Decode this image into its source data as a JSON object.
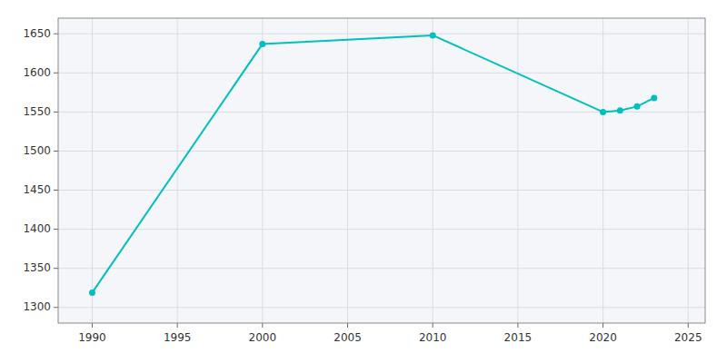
{
  "chart_data": {
    "type": "line",
    "x": [
      1990,
      2000,
      2010,
      2020,
      2021,
      2022,
      2023
    ],
    "values": [
      1319,
      1637,
      1648,
      1550,
      1552,
      1557,
      1568
    ],
    "color": "#00BFBF",
    "marker": "circle",
    "xlim": [
      1988,
      2026
    ],
    "ylim": [
      1280,
      1670
    ],
    "xticks": [
      1990,
      1995,
      2000,
      2005,
      2010,
      2015,
      2020,
      2025
    ],
    "yticks": [
      1300,
      1350,
      1400,
      1450,
      1500,
      1550,
      1600,
      1650
    ],
    "grid": true
  }
}
